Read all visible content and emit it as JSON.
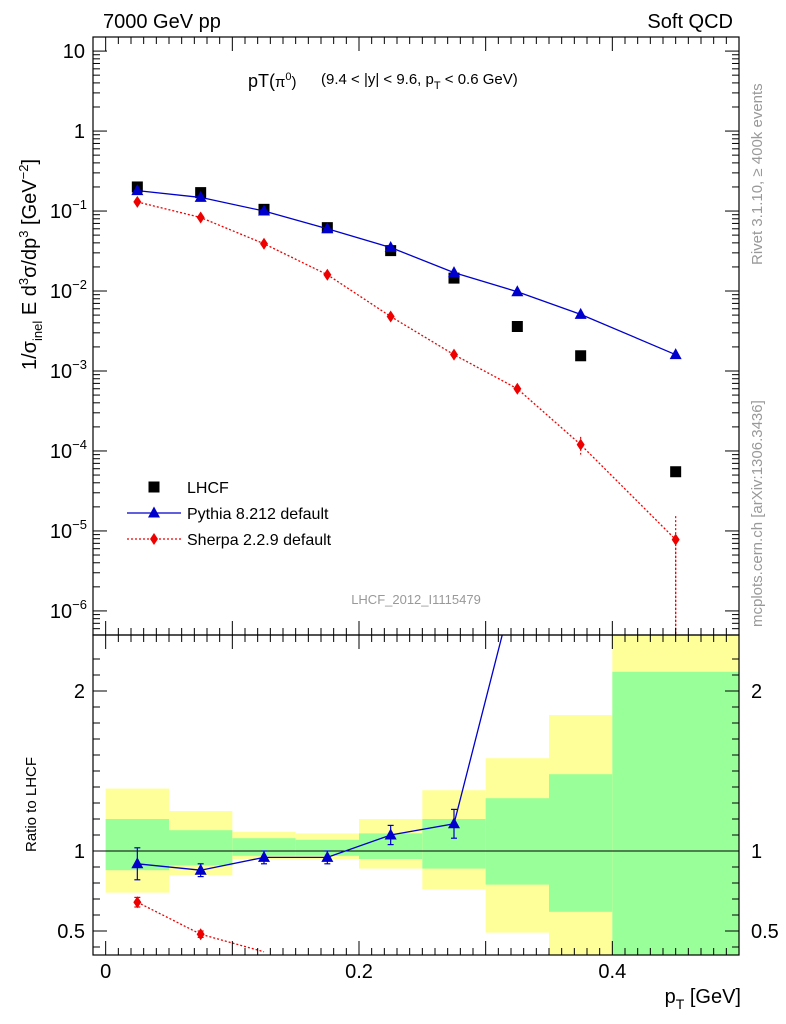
{
  "header": {
    "left": "7000 GeV pp",
    "right": "Soft QCD"
  },
  "plot_title": {
    "main": "pT(",
    "pi": "π",
    "pi_sup": "0",
    "close": ")",
    "selection": "(9.4 < |y| < 9.6, p",
    "sel_sub": "T",
    "sel_end": " < 0.6 GeV)"
  },
  "side_labels": {
    "rivet": "Rivet 3.1.10, ≥ 400k events",
    "mcplots": "mcplots.cern.ch [arXiv:1306.3436]"
  },
  "analysis_tag": "LHCF_2012_I1115479",
  "chart_data": [
    {
      "type": "scatter",
      "panel": "main",
      "ylabel": "1/σinel E d3σ/dp3 [GeV-2]",
      "ylabel_parts": {
        "a": "1/σ",
        "a_sub": "inel",
        "b": " E d",
        "b_sup": "3",
        "c": "σ/dp",
        "c_sup": "3",
        "d": " [GeV",
        "d_sup": "−2",
        "e": "]"
      },
      "yscale": "log",
      "ylim": [
        5e-07,
        15
      ],
      "xlim": [
        -0.01,
        0.5
      ],
      "y_ticks": [
        {
          "value": 10,
          "base": "10",
          "exp": ""
        },
        {
          "value": 1,
          "base": "1",
          "exp": ""
        },
        {
          "value": 0.1,
          "base": "10",
          "exp": "−1"
        },
        {
          "value": 0.01,
          "base": "10",
          "exp": "−2"
        },
        {
          "value": 0.001,
          "base": "10",
          "exp": "−3"
        },
        {
          "value": 0.0001,
          "base": "10",
          "exp": "−4"
        },
        {
          "value": 1e-05,
          "base": "10",
          "exp": "−5"
        },
        {
          "value": 1e-06,
          "base": "10",
          "exp": "−6"
        }
      ],
      "legend_position": "bottom-left",
      "legend": [
        {
          "label": "LHCF",
          "marker": "square",
          "color": "#000000"
        },
        {
          "label": "Pythia 8.212 default",
          "marker": "triangle",
          "color": "#0000cc"
        },
        {
          "label": "Sherpa 2.2.9 default",
          "marker": "diamond",
          "color": "#ee0000"
        }
      ],
      "series": [
        {
          "name": "LHCF",
          "marker": "square",
          "color": "#000000",
          "x": [
            0.025,
            0.075,
            0.125,
            0.175,
            0.225,
            0.275,
            0.325,
            0.375,
            0.45
          ],
          "y": [
            0.2,
            0.17,
            0.105,
            0.062,
            0.032,
            0.0145,
            0.0036,
            0.00155,
            5.5e-05
          ]
        },
        {
          "name": "Pythia 8.212 default",
          "marker": "triangle",
          "color": "#0000cc",
          "line": "solid",
          "x": [
            0.025,
            0.075,
            0.125,
            0.175,
            0.225,
            0.275,
            0.325,
            0.375,
            0.45
          ],
          "y": [
            0.18,
            0.148,
            0.1,
            0.06,
            0.035,
            0.017,
            0.0098,
            0.0051,
            0.0016
          ]
        },
        {
          "name": "Sherpa 2.2.9 default",
          "marker": "diamond",
          "color": "#ee0000",
          "line": "dotted",
          "x": [
            0.025,
            0.075,
            0.125,
            0.175,
            0.225,
            0.275,
            0.325,
            0.375,
            0.45
          ],
          "y": [
            0.13,
            0.083,
            0.039,
            0.016,
            0.0048,
            0.0016,
            0.0006,
            0.00012,
            7.8e-06
          ],
          "err_low": [
            0,
            0,
            0,
            0,
            0,
            0,
            5e-05,
            3e-05,
            7.5e-06
          ],
          "err_high": [
            0,
            0,
            0,
            0,
            0,
            0,
            5e-05,
            3e-05,
            7.5e-06
          ]
        }
      ]
    },
    {
      "type": "line",
      "panel": "ratio",
      "ylabel": "Ratio to LHCF",
      "xlabel": "pT [GeV]",
      "xlabel_parts": {
        "a": "p",
        "a_sub": "T",
        "b": " [GeV]"
      },
      "xlim": [
        -0.01,
        0.5
      ],
      "ylim": [
        0.35,
        2.35
      ],
      "x_ticks": [
        0,
        0.2,
        0.4
      ],
      "x_tick_labels": [
        "0",
        "0.2",
        "0.4"
      ],
      "y_ticks": [
        0.5,
        1,
        2
      ],
      "y_tick_labels": [
        "0.5",
        "1",
        "2"
      ],
      "reference": 1,
      "bands": [
        {
          "x0": 0.0,
          "x1": 0.05,
          "yel": [
            0.74,
            1.39
          ],
          "grn": [
            0.88,
            1.2
          ]
        },
        {
          "x0": 0.05,
          "x1": 0.1,
          "yel": [
            0.85,
            1.25
          ],
          "grn": [
            0.91,
            1.13
          ]
        },
        {
          "x0": 0.1,
          "x1": 0.15,
          "yel": [
            0.95,
            1.12
          ],
          "grn": [
            0.97,
            1.08
          ]
        },
        {
          "x0": 0.15,
          "x1": 0.2,
          "yel": [
            0.95,
            1.11
          ],
          "grn": [
            0.97,
            1.07
          ]
        },
        {
          "x0": 0.2,
          "x1": 0.25,
          "yel": [
            0.89,
            1.2
          ],
          "grn": [
            0.95,
            1.11
          ]
        },
        {
          "x0": 0.25,
          "x1": 0.3,
          "yel": [
            0.76,
            1.38
          ],
          "grn": [
            0.89,
            1.2
          ]
        },
        {
          "x0": 0.3,
          "x1": 0.35,
          "yel": [
            0.49,
            1.58
          ],
          "grn": [
            0.79,
            1.33
          ]
        },
        {
          "x0": 0.35,
          "x1": 0.4,
          "yel": [
            0.35,
            1.85
          ],
          "grn": [
            0.62,
            1.48
          ]
        },
        {
          "x0": 0.4,
          "x1": 0.5,
          "yel": [
            0.35,
            2.35
          ],
          "grn": [
            0.35,
            2.12
          ]
        }
      ],
      "series": [
        {
          "name": "Pythia 8.212 default",
          "marker": "triangle",
          "color": "#0000cc",
          "line": "solid",
          "x": [
            0.025,
            0.075,
            0.125,
            0.175,
            0.225,
            0.275,
            0.325
          ],
          "y": [
            0.92,
            0.88,
            0.96,
            0.96,
            1.1,
            1.17,
            2.72
          ],
          "err": [
            0.1,
            0.04,
            0.04,
            0.04,
            0.06,
            0.09,
            0
          ],
          "show_marker": [
            true,
            true,
            true,
            true,
            true,
            true,
            false
          ]
        },
        {
          "name": "Sherpa 2.2.9 default",
          "marker": "diamond",
          "color": "#ee0000",
          "line": "dotted",
          "x": [
            0.025,
            0.075,
            0.125
          ],
          "y": [
            0.68,
            0.48,
            0.37
          ],
          "err": [
            0.03,
            0.02,
            0
          ],
          "show_marker": [
            true,
            true,
            false
          ]
        }
      ]
    }
  ]
}
